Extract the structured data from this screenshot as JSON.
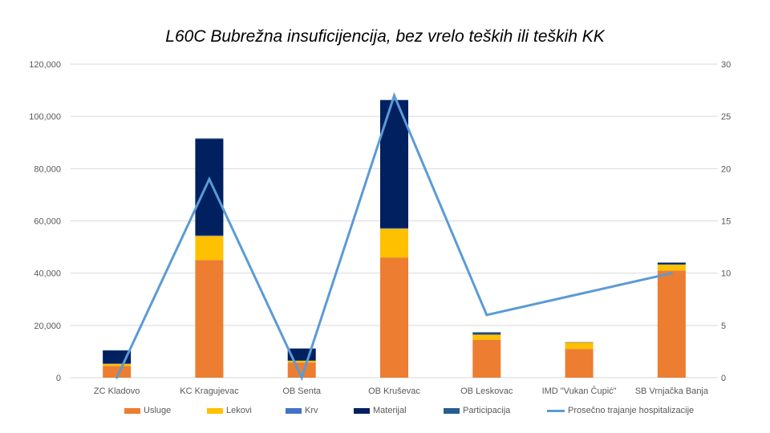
{
  "chart_data": {
    "type": "bar",
    "stacked": true,
    "title": "L60C Bubrežna insuficijencija, bez vrelo teških ili teških KK",
    "categories": [
      "ZC Kladovo",
      "KC Kragujevac",
      "OB Senta",
      "OB Kruševac",
      "OB Leskovac",
      "IMD \"Vukan Čupić\"",
      "SB Vrnjačka Banja"
    ],
    "series": [
      {
        "name": "Usluge",
        "color": "#ED7D31",
        "values": [
          4500,
          45000,
          5800,
          46000,
          14500,
          11000,
          41000
        ]
      },
      {
        "name": "Lekovi",
        "color": "#FFC000",
        "values": [
          800,
          9200,
          700,
          11000,
          2000,
          2500,
          2300
        ]
      },
      {
        "name": "Krv",
        "color": "#4472C4",
        "values": [
          100,
          200,
          100,
          200,
          100,
          0,
          100
        ]
      },
      {
        "name": "Materijal",
        "color": "#002060",
        "values": [
          5000,
          37000,
          4500,
          49000,
          300,
          0,
          500
        ]
      },
      {
        "name": "Participacija",
        "color": "#255E91",
        "values": [
          100,
          200,
          100,
          100,
          500,
          100,
          200
        ]
      }
    ],
    "line_series": {
      "name": "Prosečno trajanje hospitalizacije",
      "color": "#5B9BD5",
      "axis": "secondary",
      "values": [
        0,
        19,
        0,
        27,
        6,
        8,
        10
      ]
    },
    "y_axis": {
      "ylim": [
        0,
        120000
      ],
      "ticks": [
        "0",
        "20,000",
        "40,000",
        "60,000",
        "80,000",
        "100,000",
        "120,000"
      ]
    },
    "y2_axis": {
      "ylim": [
        0,
        30
      ],
      "ticks": [
        "0",
        "5",
        "10",
        "15",
        "20",
        "25",
        "30"
      ]
    },
    "grid": true,
    "legend_position": "bottom"
  }
}
